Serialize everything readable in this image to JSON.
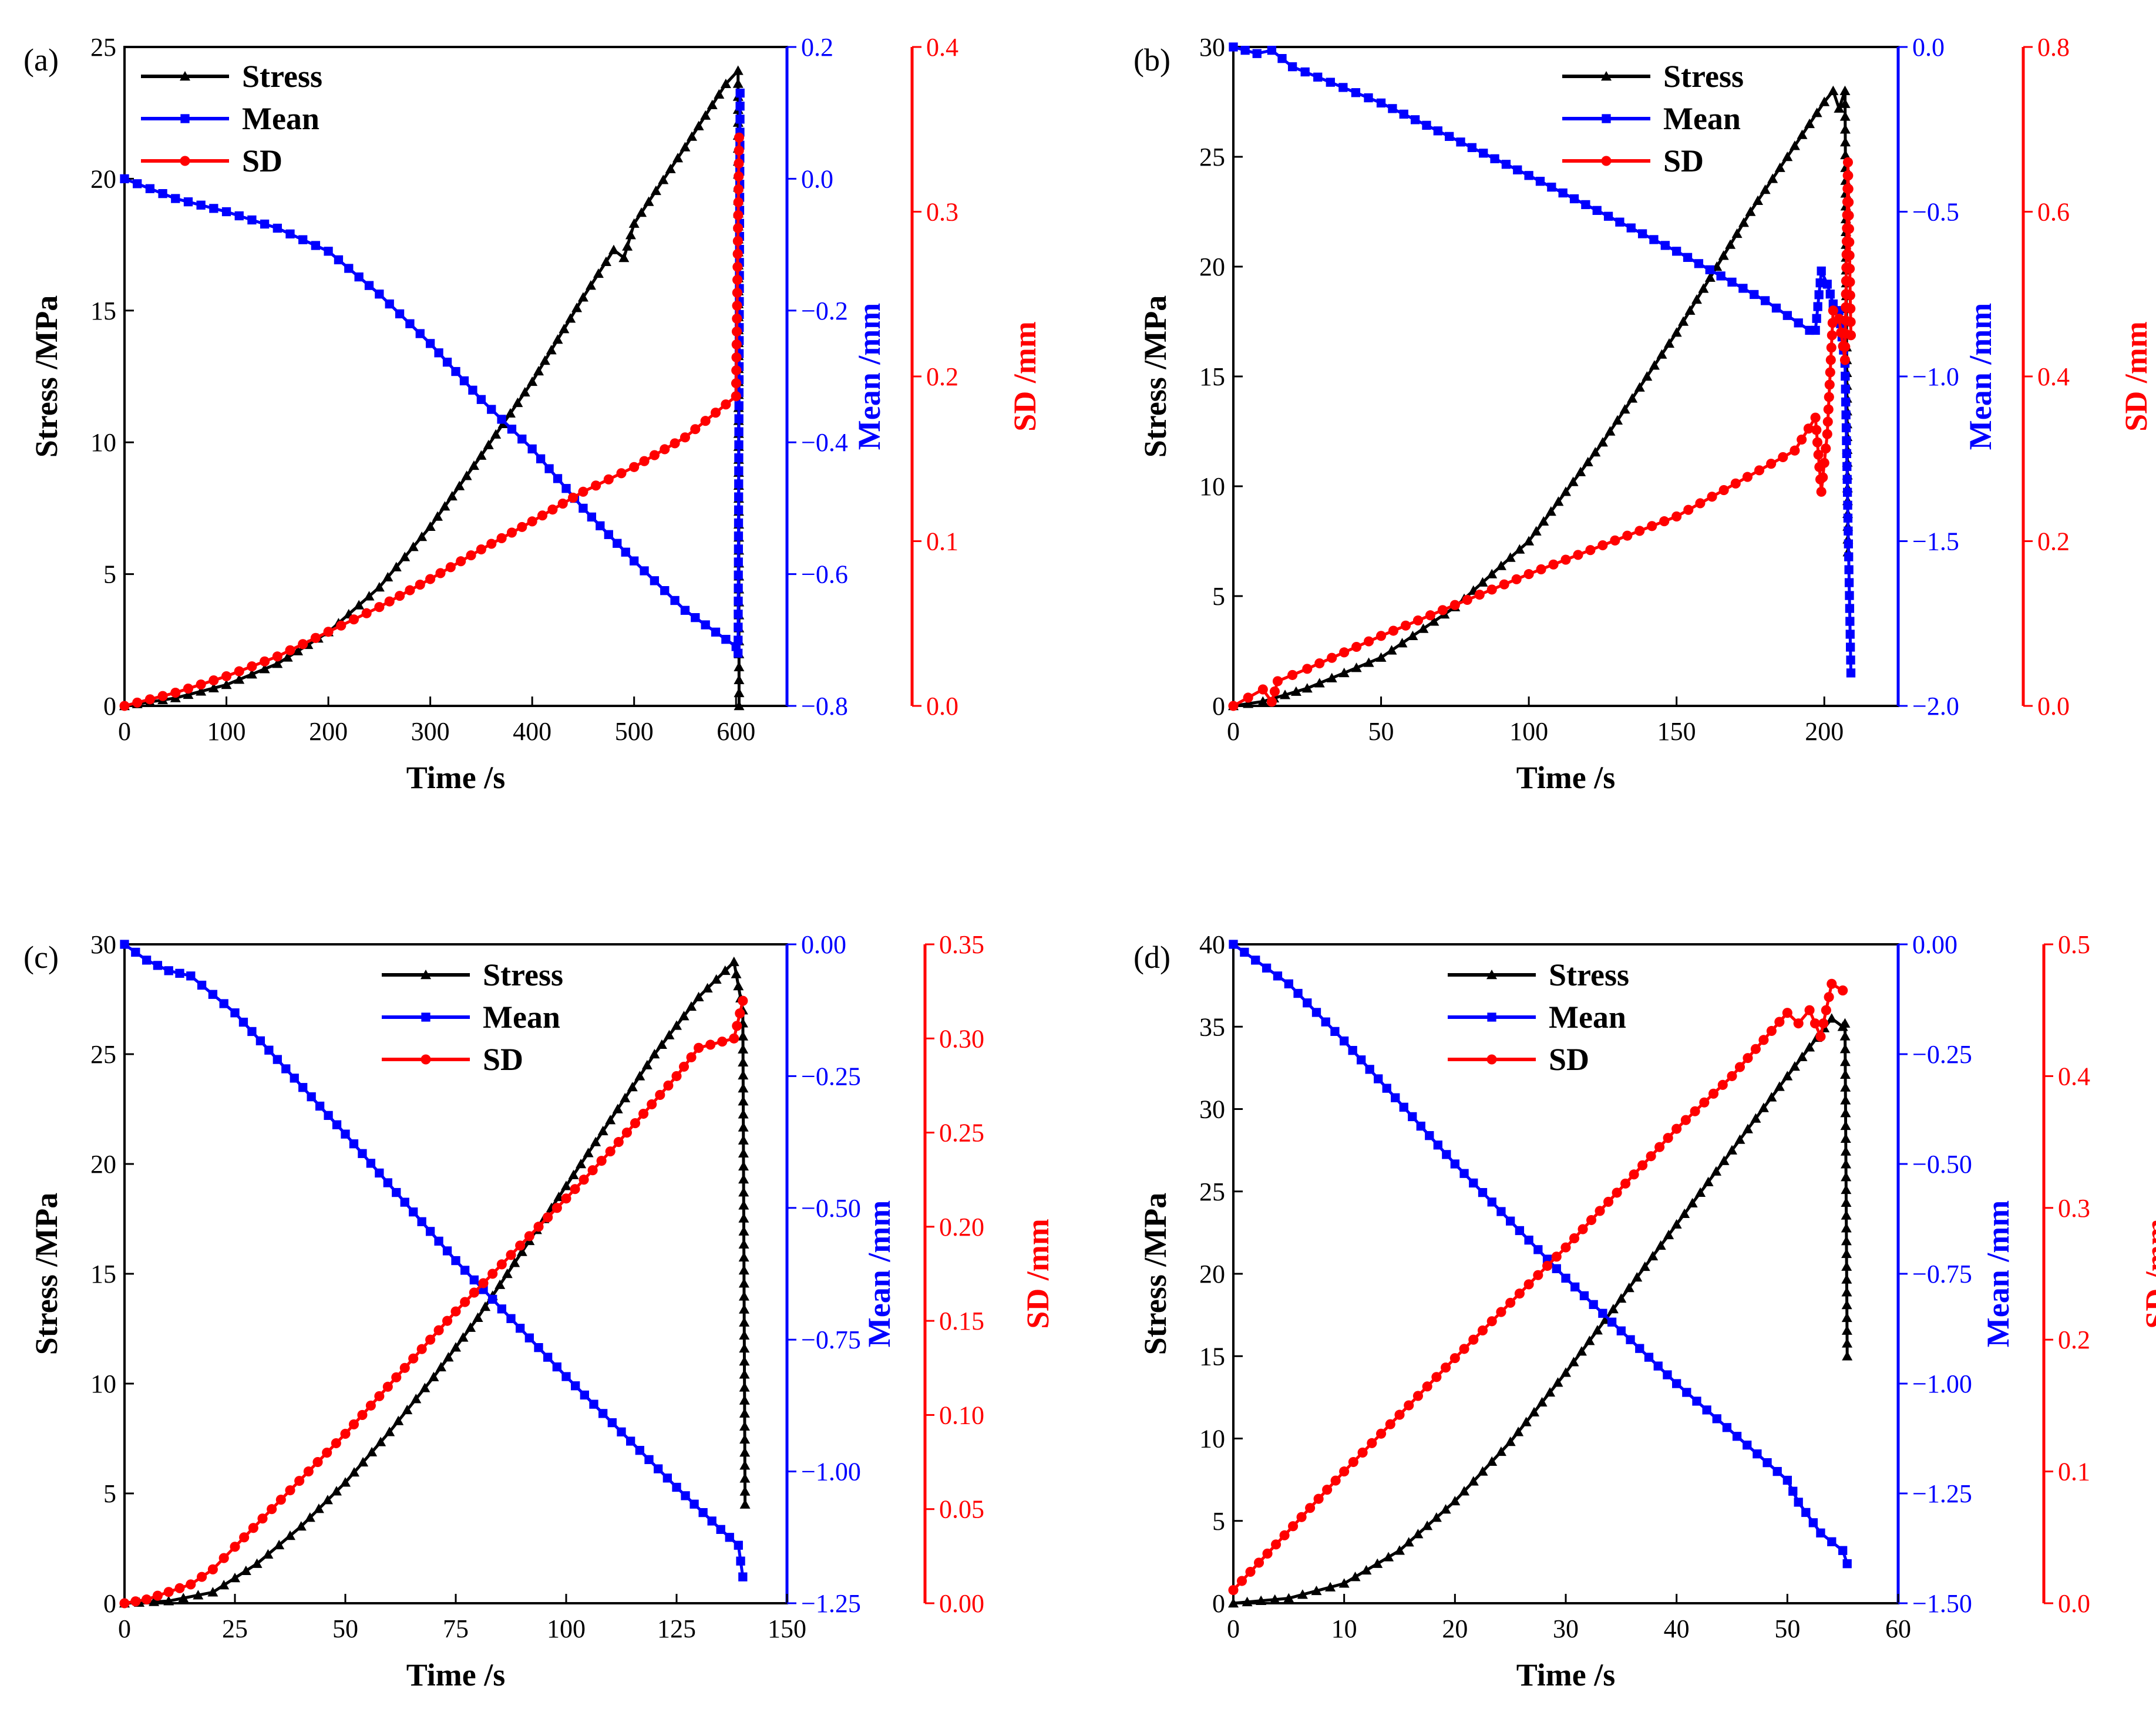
{
  "figure": {
    "panels_count": 4
  },
  "colors": {
    "stress": "#000000",
    "mean": "#0000ff",
    "sd": "#ff0000"
  },
  "legend_labels": [
    "Stress",
    "Mean",
    "SD"
  ],
  "chart_data": [
    {
      "id": "a",
      "panel_label": "(a)",
      "type": "line",
      "title": "",
      "xlabel": "Time /s",
      "ylabel": "Stress /MPa",
      "y2label": "Mean /mm",
      "y3label": "SD /mm",
      "xlim": [
        0,
        650
      ],
      "xticks": [
        "0",
        "100",
        "200",
        "300",
        "400",
        "500",
        "600"
      ],
      "xtick_values": [
        0,
        100,
        200,
        300,
        400,
        500,
        600
      ],
      "ylim": [
        0,
        25
      ],
      "yticks": [
        "0",
        "5",
        "10",
        "15",
        "20",
        "25"
      ],
      "ytick_values": [
        0,
        5,
        10,
        15,
        20,
        25
      ],
      "y2lim": [
        -0.8,
        0.2
      ],
      "y2ticks": [
        "−0.8",
        "−0.6",
        "−0.4",
        "−0.2",
        "0.0",
        "0.2"
      ],
      "y2tick_values": [
        -0.8,
        -0.6,
        -0.4,
        -0.2,
        0.0,
        0.2
      ],
      "y3lim": [
        0,
        0.4
      ],
      "y3ticks": [
        "0.0",
        "0.1",
        "0.2",
        "0.3",
        "0.4"
      ],
      "y3tick_values": [
        0,
        0.1,
        0.2,
        0.3,
        0.4
      ],
      "legend_position": "top-left",
      "series": [
        {
          "name": "Stress",
          "axis": "left",
          "marker": "triangle",
          "x": [
            0,
            50,
            100,
            150,
            200,
            250,
            300,
            350,
            400,
            450,
            480,
            490,
            500,
            550,
            590,
            602,
            603
          ],
          "values": [
            0,
            0.3,
            0.8,
            1.6,
            2.8,
            4.5,
            6.8,
            9.5,
            12.3,
            15.5,
            17.3,
            17.0,
            18.3,
            21.2,
            23.6,
            24.1,
            0
          ]
        },
        {
          "name": "Mean",
          "axis": "right1",
          "marker": "square",
          "x": [
            0,
            50,
            100,
            150,
            200,
            250,
            300,
            350,
            400,
            450,
            500,
            550,
            600,
            602,
            604
          ],
          "values": [
            0,
            -0.03,
            -0.05,
            -0.075,
            -0.11,
            -0.175,
            -0.25,
            -0.335,
            -0.41,
            -0.5,
            -0.58,
            -0.655,
            -0.71,
            -0.72,
            0.13
          ]
        },
        {
          "name": "SD",
          "axis": "right2",
          "marker": "circle",
          "x": [
            0,
            50,
            100,
            150,
            200,
            250,
            300,
            350,
            400,
            450,
            500,
            550,
            600,
            603
          ],
          "values": [
            0,
            0.008,
            0.018,
            0.03,
            0.045,
            0.06,
            0.077,
            0.095,
            0.112,
            0.13,
            0.145,
            0.163,
            0.188,
            0.345
          ]
        }
      ]
    },
    {
      "id": "b",
      "panel_label": "(b)",
      "type": "line",
      "title": "",
      "xlabel": "Time /s",
      "ylabel": "Stress /MPa",
      "y2label": "Mean /mm",
      "y3label": "SD /mm",
      "xlim": [
        0,
        225
      ],
      "xticks": [
        "0",
        "50",
        "100",
        "150",
        "200"
      ],
      "xtick_values": [
        0,
        50,
        100,
        150,
        200
      ],
      "ylim": [
        0,
        30
      ],
      "yticks": [
        "0",
        "5",
        "10",
        "15",
        "20",
        "25",
        "30"
      ],
      "ytick_values": [
        0,
        5,
        10,
        15,
        20,
        25,
        30
      ],
      "y2lim": [
        -2.0,
        0.0
      ],
      "y2ticks": [
        "−2.0",
        "−1.5",
        "−1.0",
        "−0.5",
        "0.0"
      ],
      "y2tick_values": [
        -2.0,
        -1.5,
        -1.0,
        -0.5,
        0.0
      ],
      "y3lim": [
        0,
        0.8
      ],
      "y3ticks": [
        "0.0",
        "0.2",
        "0.4",
        "0.6",
        "0.8"
      ],
      "y3tick_values": [
        0,
        0.2,
        0.4,
        0.6,
        0.8
      ],
      "legend_position": "top-right",
      "series": [
        {
          "name": "Stress",
          "axis": "left",
          "marker": "triangle",
          "x": [
            0,
            10,
            25,
            50,
            75,
            100,
            125,
            150,
            175,
            195,
            200,
            203,
            205,
            207,
            208
          ],
          "values": [
            0,
            0.2,
            0.8,
            2.2,
            4.5,
            7.5,
            12,
            17,
            22.5,
            26.5,
            27.5,
            28,
            27.2,
            28,
            7
          ]
        },
        {
          "name": "Mean",
          "axis": "right1",
          "marker": "square",
          "x": [
            0,
            8,
            13,
            20,
            50,
            100,
            150,
            180,
            195,
            197,
            199,
            201,
            203,
            205,
            207,
            209
          ],
          "values": [
            0,
            -0.02,
            -0.01,
            -0.06,
            -0.17,
            -0.39,
            -0.62,
            -0.77,
            -0.86,
            -0.86,
            -0.68,
            -0.72,
            -0.78,
            -0.8,
            -0.96,
            -1.9
          ]
        },
        {
          "name": "SD",
          "axis": "right2",
          "marker": "circle",
          "x": [
            0,
            5,
            10,
            13,
            15,
            25,
            50,
            100,
            150,
            190,
            197,
            199,
            201,
            203,
            205,
            207,
            208,
            209
          ],
          "values": [
            0,
            0.01,
            0.02,
            0.005,
            0.03,
            0.045,
            0.085,
            0.16,
            0.23,
            0.31,
            0.35,
            0.26,
            0.33,
            0.48,
            0.47,
            0.42,
            0.66,
            0.45
          ]
        }
      ]
    },
    {
      "id": "c",
      "panel_label": "(c)",
      "type": "line",
      "title": "",
      "xlabel": "Time /s",
      "ylabel": "Stress /MPa",
      "y2label": "Mean /mm",
      "y3label": "SD /mm",
      "xlim": [
        0,
        150
      ],
      "xticks": [
        "0",
        "25",
        "50",
        "75",
        "100",
        "125",
        "150"
      ],
      "xtick_values": [
        0,
        25,
        50,
        75,
        100,
        125,
        150
      ],
      "ylim": [
        0,
        30
      ],
      "yticks": [
        "0",
        "5",
        "10",
        "15",
        "20",
        "25",
        "30"
      ],
      "ytick_values": [
        0,
        5,
        10,
        15,
        20,
        25,
        30
      ],
      "y2lim": [
        -1.25,
        0.0
      ],
      "y2ticks": [
        "−1.25",
        "−1.00",
        "−0.75",
        "−0.50",
        "−0.25",
        "0.00"
      ],
      "y2tick_values": [
        -1.25,
        -1.0,
        -0.75,
        -0.5,
        -0.25,
        0.0
      ],
      "y3lim": [
        0,
        0.35
      ],
      "y3ticks": [
        "0.00",
        "0.05",
        "0.10",
        "0.15",
        "0.20",
        "0.25",
        "0.30",
        "0.35"
      ],
      "y3tick_values": [
        0,
        0.05,
        0.1,
        0.15,
        0.2,
        0.25,
        0.3,
        0.35
      ],
      "legend_position": "top-center",
      "series": [
        {
          "name": "Stress",
          "axis": "left",
          "marker": "triangle",
          "x": [
            0,
            10,
            20,
            30,
            40,
            50,
            60,
            70,
            80,
            90,
            100,
            110,
            120,
            130,
            138,
            140,
            140.5
          ],
          "values": [
            0,
            0.1,
            0.5,
            1.8,
            3.5,
            5.5,
            7.8,
            10.3,
            13.0,
            16.0,
            19.0,
            22.0,
            25.0,
            27.6,
            29.2,
            27.0,
            4.5
          ]
        },
        {
          "name": "Mean",
          "axis": "right1",
          "marker": "square",
          "x": [
            0,
            5,
            10,
            15,
            25,
            50,
            75,
            100,
            125,
            135,
            139,
            140
          ],
          "values": [
            0,
            -0.03,
            -0.05,
            -0.06,
            -0.13,
            -0.36,
            -0.6,
            -0.82,
            -1.03,
            -1.11,
            -1.14,
            -1.2
          ]
        },
        {
          "name": "SD",
          "axis": "right2",
          "marker": "circle",
          "x": [
            0,
            5,
            10,
            15,
            20,
            25,
            50,
            75,
            100,
            110,
            125,
            130,
            138,
            140
          ],
          "values": [
            0,
            0.002,
            0.006,
            0.01,
            0.018,
            0.03,
            0.09,
            0.155,
            0.215,
            0.24,
            0.28,
            0.295,
            0.3,
            0.32
          ]
        }
      ]
    },
    {
      "id": "d",
      "panel_label": "(d)",
      "type": "line",
      "title": "",
      "xlabel": "Time /s",
      "ylabel": "Stress /MPa",
      "y2label": "Mean /mm",
      "y3label": "SD /mm",
      "xlim": [
        0,
        60
      ],
      "xticks": [
        "0",
        "10",
        "20",
        "30",
        "40",
        "50",
        "60"
      ],
      "xtick_values": [
        0,
        10,
        20,
        30,
        40,
        50,
        60
      ],
      "ylim": [
        0,
        40
      ],
      "yticks": [
        "0",
        "5",
        "10",
        "15",
        "20",
        "25",
        "30",
        "35",
        "40"
      ],
      "ytick_values": [
        0,
        5,
        10,
        15,
        20,
        25,
        30,
        35,
        40
      ],
      "y2lim": [
        -1.5,
        0.0
      ],
      "y2ticks": [
        "−1.50",
        "−1.25",
        "−1.00",
        "−0.75",
        "−0.50",
        "−0.25",
        "0.00"
      ],
      "y2tick_values": [
        -1.5,
        -1.25,
        -1.0,
        -0.75,
        -0.5,
        -0.25,
        0.0
      ],
      "y3lim": [
        0,
        0.5
      ],
      "y3ticks": [
        "0.0",
        "0.1",
        "0.2",
        "0.3",
        "0.4",
        "0.5"
      ],
      "y3tick_values": [
        0,
        0.1,
        0.2,
        0.3,
        0.4,
        0.5
      ],
      "legend_position": "top-center",
      "series": [
        {
          "name": "Stress",
          "axis": "left",
          "marker": "triangle",
          "x": [
            0,
            5,
            10,
            15,
            20,
            25,
            30,
            35,
            40,
            45,
            50,
            54,
            55,
            55.2,
            55.4
          ],
          "values": [
            0,
            0.3,
            1.2,
            3.2,
            6.2,
            9.8,
            14,
            18.5,
            23,
            27.5,
            32,
            35.5,
            35,
            35.2,
            15
          ]
        },
        {
          "name": "Mean",
          "axis": "right1",
          "marker": "square",
          "x": [
            0,
            5,
            10,
            20,
            30,
            40,
            50,
            51,
            53,
            55,
            55.4
          ],
          "values": [
            0,
            -0.09,
            -0.22,
            -0.5,
            -0.76,
            -1.0,
            -1.22,
            -1.27,
            -1.34,
            -1.38,
            -1.41
          ]
        },
        {
          "name": "SD",
          "axis": "right2",
          "marker": "circle",
          "x": [
            0,
            10,
            20,
            30,
            40,
            45,
            50,
            51,
            52,
            53,
            54,
            55
          ],
          "values": [
            0.01,
            0.1,
            0.186,
            0.27,
            0.36,
            0.4,
            0.448,
            0.44,
            0.45,
            0.43,
            0.47,
            0.465
          ]
        }
      ]
    }
  ]
}
